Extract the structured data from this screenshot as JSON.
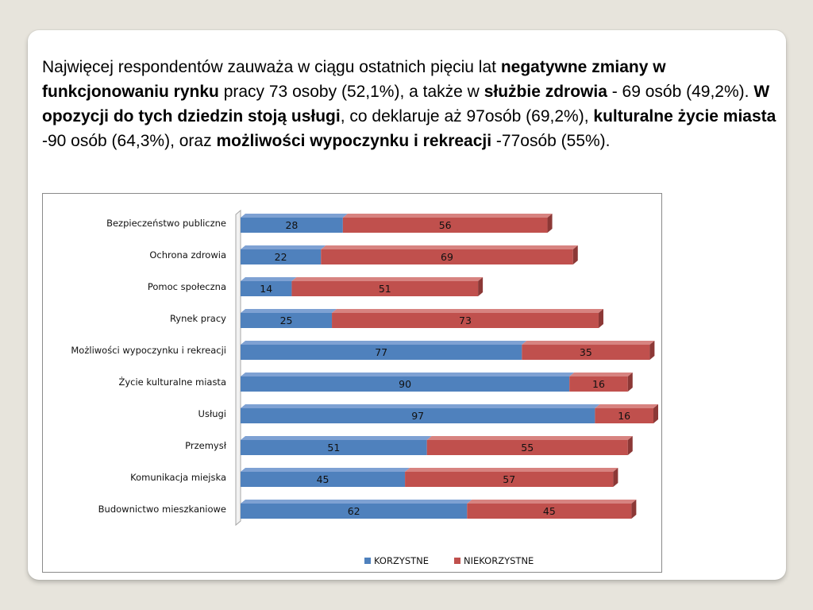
{
  "paragraph": {
    "t1": "Najwięcej respondentów zauważa w ciągu ostatnich pięciu lat ",
    "b1": "negatywne zmiany w funkcjonowaniu rynku",
    "t2": " pracy 73 osoby (52,1%),  a także w ",
    "b2": "służbie zdrowia",
    "t3": " - 69 osób (49,2%). ",
    "b3": "W opozycji do tych dziedzin stoją usługi",
    "t4": ", co deklaruje aż 97osób (69,2%), ",
    "b4": "kulturalne życie miasta",
    "t5": " -90 osób (64,3%), oraz ",
    "b5": "możliwości wypoczynku i rekreacji",
    "t6": " -77osób (55%)."
  },
  "colors": {
    "korzystne": "#4f81bd",
    "korzystne_dark": "#385d8a",
    "korzystne_light": "#7ea1d3",
    "niekorzystne": "#c0504d",
    "niekorzystne_dark": "#8c3836",
    "niekorzystne_light": "#d78380",
    "wall": "#d9d9d9"
  },
  "chart_data": {
    "type": "bar",
    "orientation": "horizontal",
    "stacked": true,
    "style": "3d",
    "categories": [
      "Bezpieczeństwo publiczne",
      "Ochrona zdrowia",
      "Pomoc społeczna",
      "Rynek pracy",
      "Możliwości wypoczynku i rekreacji",
      "Życie kulturalne miasta",
      "Usługi",
      "Przemysł",
      "Komunikacja miejska",
      "Budownictwo mieszkaniowe"
    ],
    "series": [
      {
        "name": "KORZYSTNE",
        "values": [
          28,
          22,
          14,
          25,
          77,
          90,
          97,
          51,
          45,
          62
        ]
      },
      {
        "name": "NIEKORZYSTNE",
        "values": [
          56,
          69,
          51,
          73,
          35,
          16,
          16,
          55,
          57,
          45
        ]
      }
    ],
    "xlim": [
      0,
      113
    ],
    "grid": false,
    "legend": "bottom",
    "data_labels": true
  }
}
